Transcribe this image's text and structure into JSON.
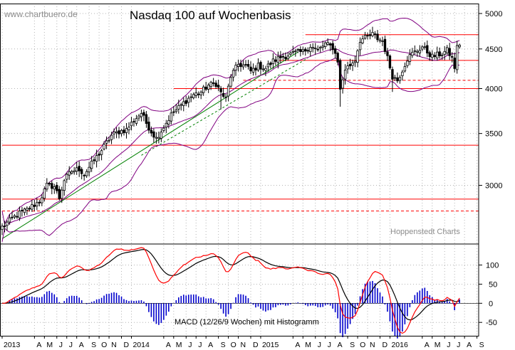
{
  "watermark": "www.chartbuero.de",
  "credit": "Hoppenstedt Charts",
  "chart_data": [
    {
      "type": "candlestick",
      "title": "Nasdaq 100 auf Wochenbasis",
      "y_scale": "log",
      "ylim": [
        2520,
        5150
      ],
      "y_ticks": [
        {
          "value": 3000,
          "label": "3000"
        },
        {
          "value": 3500,
          "label": "3500"
        },
        {
          "value": 4000,
          "label": "4000"
        },
        {
          "value": 4500,
          "label": "4500"
        },
        {
          "value": 5000,
          "label": "5000"
        }
      ],
      "x_range": [
        0,
        186
      ],
      "x_ticks": [
        {
          "week": 0,
          "label": "2013",
          "year": true
        },
        {
          "week": 13,
          "label": "A"
        },
        {
          "week": 17,
          "label": "M"
        },
        {
          "week": 22,
          "label": "J"
        },
        {
          "week": 26,
          "label": "J"
        },
        {
          "week": 30,
          "label": "A"
        },
        {
          "week": 35,
          "label": "S"
        },
        {
          "week": 39,
          "label": "O"
        },
        {
          "week": 43,
          "label": "N"
        },
        {
          "week": 48,
          "label": "D"
        },
        {
          "week": 52,
          "label": "2014",
          "year": true
        },
        {
          "week": 65,
          "label": "A"
        },
        {
          "week": 69,
          "label": "M"
        },
        {
          "week": 74,
          "label": "J"
        },
        {
          "week": 78,
          "label": "J"
        },
        {
          "week": 82,
          "label": "A"
        },
        {
          "week": 87,
          "label": "S"
        },
        {
          "week": 91,
          "label": "O"
        },
        {
          "week": 95,
          "label": "N"
        },
        {
          "week": 100,
          "label": "D"
        },
        {
          "week": 104,
          "label": "2015",
          "year": true
        },
        {
          "week": 117,
          "label": "A"
        },
        {
          "week": 121,
          "label": "M"
        },
        {
          "week": 126,
          "label": "J"
        },
        {
          "week": 130,
          "label": "J"
        },
        {
          "week": 134,
          "label": "A"
        },
        {
          "week": 139,
          "label": "S"
        },
        {
          "week": 143,
          "label": "O"
        },
        {
          "week": 147,
          "label": "N"
        },
        {
          "week": 152,
          "label": "D"
        },
        {
          "week": 156,
          "label": "2016",
          "year": true
        },
        {
          "week": 169,
          "label": "A"
        },
        {
          "week": 173,
          "label": "M"
        },
        {
          "week": 178,
          "label": "J"
        },
        {
          "week": 182,
          "label": "J"
        },
        {
          "week": 186,
          "label": "A"
        },
        {
          "week": 191,
          "label": "S"
        }
      ],
      "horizontal_lines": [
        {
          "value": 4695,
          "x_from": 122,
          "style": "solid"
        },
        {
          "value": 4350,
          "x_from": 109,
          "style": "solid"
        },
        {
          "value": 4100,
          "x_from": 97,
          "style": "dashed"
        },
        {
          "value": 4000,
          "x_from": 69,
          "style": "solid"
        },
        {
          "value": 3380,
          "x_from": 0,
          "style": "solid"
        },
        {
          "value": 2880,
          "x_from": 0,
          "style": "solid"
        },
        {
          "value": 2780,
          "x_from": 0,
          "style": "dashed"
        }
      ],
      "trend_lines": [
        {
          "from": [
            0,
            2560
          ],
          "to": [
            119,
            4460
          ],
          "style": "solid"
        },
        {
          "from": [
            56,
            3280
          ],
          "to": [
            123,
            4380
          ],
          "style": "dashed"
        }
      ],
      "colors": {
        "candle": "#000000",
        "band": "#800080",
        "hline": "#ff0000",
        "trend": "#008000"
      },
      "waypoints": [
        [
          0,
          2650
        ],
        [
          6,
          2750
        ],
        [
          10,
          2790
        ],
        [
          15,
          2860
        ],
        [
          18,
          3000
        ],
        [
          21,
          2990
        ],
        [
          23,
          2890
        ],
        [
          25,
          3050
        ],
        [
          28,
          3130
        ],
        [
          31,
          3150
        ],
        [
          33,
          3100
        ],
        [
          37,
          3230
        ],
        [
          40,
          3330
        ],
        [
          44,
          3480
        ],
        [
          47,
          3520
        ],
        [
          50,
          3540
        ],
        [
          53,
          3640
        ],
        [
          56,
          3720
        ],
        [
          58,
          3610
        ],
        [
          60,
          3520
        ],
        [
          62,
          3450
        ],
        [
          65,
          3570
        ],
        [
          68,
          3700
        ],
        [
          71,
          3780
        ],
        [
          74,
          3860
        ],
        [
          77,
          3930
        ],
        [
          80,
          3960
        ],
        [
          83,
          4040
        ],
        [
          86,
          4060
        ],
        [
          88,
          3950
        ],
        [
          90,
          3880
        ],
        [
          92,
          4150
        ],
        [
          95,
          4300
        ],
        [
          98,
          4280
        ],
        [
          100,
          4210
        ],
        [
          103,
          4280
        ],
        [
          106,
          4250
        ],
        [
          109,
          4340
        ],
        [
          112,
          4390
        ],
        [
          115,
          4420
        ],
        [
          118,
          4450
        ],
        [
          121,
          4460
        ],
        [
          124,
          4540
        ],
        [
          127,
          4480
        ],
        [
          130,
          4570
        ],
        [
          133,
          4520
        ],
        [
          135,
          4350
        ],
        [
          136,
          3980
        ],
        [
          138,
          4240
        ],
        [
          140,
          4290
        ],
        [
          142,
          4360
        ],
        [
          144,
          4620
        ],
        [
          147,
          4660
        ],
        [
          149,
          4700
        ],
        [
          151,
          4640
        ],
        [
          153,
          4610
        ],
        [
          155,
          4380
        ],
        [
          157,
          4150
        ],
        [
          159,
          4100
        ],
        [
          161,
          4230
        ],
        [
          163,
          4370
        ],
        [
          165,
          4440
        ],
        [
          167,
          4480
        ],
        [
          169,
          4530
        ],
        [
          171,
          4460
        ],
        [
          173,
          4400
        ],
        [
          175,
          4420
        ],
        [
          177,
          4440
        ],
        [
          179,
          4480
        ],
        [
          181,
          4380
        ],
        [
          182,
          4260
        ],
        [
          183,
          4520
        ],
        [
          184,
          4570
        ]
      ]
    },
    {
      "type": "line",
      "title": "MACD (12/26/9 Wochen) mit Histogramm",
      "ylim": [
        -85,
        155
      ],
      "y_ticks": [
        {
          "value": 100,
          "label": "100"
        },
        {
          "value": 50,
          "label": "50"
        },
        {
          "value": 0,
          "label": "0"
        },
        {
          "value": -50,
          "label": "-50"
        }
      ],
      "series": [
        {
          "role": "macd",
          "color": "#ff0000"
        },
        {
          "role": "signal",
          "color": "#000000"
        },
        {
          "role": "histogram",
          "color": "#0000cc"
        }
      ]
    }
  ]
}
